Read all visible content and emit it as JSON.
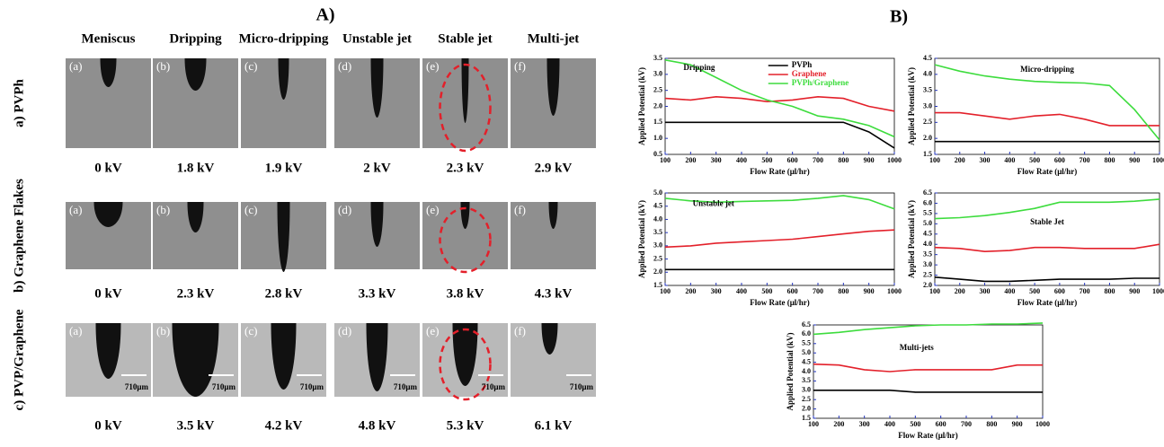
{
  "panel_a": {
    "title": "A)",
    "columns": [
      "Meniscus",
      "Dripping",
      "Micro-dripping",
      "Unstable jet",
      "Stable jet",
      "Multi-jet"
    ],
    "scale_bar_label": "710μm",
    "rows": [
      {
        "label": "a)  PVPh",
        "images": [
          {
            "letter": "(a)",
            "voltage": "0 kV"
          },
          {
            "letter": "(b)",
            "voltage": "1.8 kV"
          },
          {
            "letter": "(c)",
            "voltage": "1.9 kV"
          },
          {
            "letter": "(d)",
            "voltage": "2 kV"
          },
          {
            "letter": "(e)",
            "voltage": "2.3 kV"
          },
          {
            "letter": "(f)",
            "voltage": "2.9 kV"
          }
        ]
      },
      {
        "label": "b)  Graphene Flakes",
        "images": [
          {
            "letter": "(a)",
            "voltage": "0 kV"
          },
          {
            "letter": "(b)",
            "voltage": "2.3 kV"
          },
          {
            "letter": "(c)",
            "voltage": "2.8 kV"
          },
          {
            "letter": "(d)",
            "voltage": "3.3 kV"
          },
          {
            "letter": "(e)",
            "voltage": "3.8 kV"
          },
          {
            "letter": "(f)",
            "voltage": "4.3 kV"
          }
        ]
      },
      {
        "label": "c)  PVP/Graphene",
        "images": [
          {
            "letter": "(a)",
            "voltage": "0 kV"
          },
          {
            "letter": "(b)",
            "voltage": "3.5 kV"
          },
          {
            "letter": "(c)",
            "voltage": "4.2 kV"
          },
          {
            "letter": "(d)",
            "voltage": "4.8 kV"
          },
          {
            "letter": "(e)",
            "voltage": "5.3 kV"
          },
          {
            "letter": "(f)",
            "voltage": "6.1 kV"
          }
        ]
      }
    ]
  },
  "panel_b": {
    "title": "B)"
  },
  "chart_data": [
    {
      "type": "line",
      "title": "Dripping",
      "x_label": "Flow Rate (μl/hr)",
      "y_label": "Applied Potential (kV)",
      "legend": true,
      "x": [
        100,
        200,
        300,
        400,
        500,
        600,
        700,
        800,
        900,
        1000
      ],
      "xlim": [
        100,
        1000
      ],
      "xticks": [
        100,
        200,
        300,
        400,
        500,
        600,
        700,
        800,
        900,
        1000
      ],
      "ylim": [
        0.5,
        3.5
      ],
      "yticks": [
        0.5,
        {
          "value": 1,
          "label": "1.0"
        },
        1.5,
        {
          "value": 2,
          "label": "2.0"
        },
        2.5,
        {
          "value": 3,
          "label": "3.0"
        },
        3.5
      ],
      "series": [
        {
          "name": "PVPh",
          "color": "#000000",
          "values": [
            1.5,
            1.5,
            1.5,
            1.5,
            1.5,
            1.5,
            1.5,
            1.5,
            1.2,
            0.7
          ]
        },
        {
          "name": "Graphene",
          "color": "#e3202a",
          "values": [
            2.25,
            2.2,
            2.3,
            2.25,
            2.15,
            2.2,
            2.3,
            2.25,
            2.0,
            1.85
          ]
        },
        {
          "name": "PVPh/Graphene",
          "color": "#3ddc3d",
          "values": [
            3.45,
            3.3,
            2.9,
            2.5,
            2.2,
            2.0,
            1.7,
            1.6,
            1.4,
            1.05
          ]
        }
      ]
    },
    {
      "type": "line",
      "title": "Micro-dripping",
      "x_label": "Flow Rate (μl/hr)",
      "y_label": "Applied Potential (kV)",
      "x": [
        100,
        200,
        300,
        400,
        500,
        600,
        700,
        800,
        900,
        1000
      ],
      "xlim": [
        100,
        1000
      ],
      "xticks": [
        100,
        200,
        300,
        400,
        500,
        600,
        700,
        800,
        900,
        1000
      ],
      "ylim": [
        1.5,
        4.5
      ],
      "yticks": [
        1.5,
        {
          "value": 2,
          "label": "2.0"
        },
        2.5,
        {
          "value": 3,
          "label": "3.0"
        },
        3.5,
        {
          "value": 4,
          "label": "4.0"
        },
        4.5
      ],
      "series": [
        {
          "color": "#000000",
          "values": [
            1.9,
            1.9,
            1.9,
            1.9,
            1.9,
            1.9,
            1.9,
            1.9,
            1.9,
            1.9
          ]
        },
        {
          "color": "#e3202a",
          "values": [
            2.8,
            2.8,
            2.7,
            2.6,
            2.7,
            2.75,
            2.6,
            2.4,
            2.4,
            2.4
          ]
        },
        {
          "color": "#3ddc3d",
          "values": [
            4.3,
            4.1,
            3.95,
            3.85,
            3.78,
            3.75,
            3.73,
            3.65,
            2.9,
            1.95
          ]
        }
      ]
    },
    {
      "type": "line",
      "title": "Unstable jet",
      "x_label": "Flow Rate (μl/hr)",
      "y_label": "Applied Potential (kV)",
      "x": [
        100,
        200,
        300,
        400,
        500,
        600,
        700,
        800,
        900,
        1000
      ],
      "xlim": [
        100,
        1000
      ],
      "xticks": [
        100,
        200,
        300,
        400,
        500,
        600,
        700,
        800,
        900,
        1000
      ],
      "ylim": [
        1.5,
        5
      ],
      "yticks": [
        1.5,
        {
          "value": 2,
          "label": "2.0"
        },
        2.5,
        {
          "value": 3,
          "label": "3.0"
        },
        3.5,
        {
          "value": 4,
          "label": "4.0"
        },
        4.5,
        {
          "value": 5,
          "label": "5.0"
        }
      ],
      "series": [
        {
          "color": "#000000",
          "values": [
            2.1,
            2.1,
            2.1,
            2.1,
            2.1,
            2.1,
            2.1,
            2.1,
            2.1,
            2.1
          ]
        },
        {
          "color": "#e3202a",
          "values": [
            2.95,
            3.0,
            3.1,
            3.15,
            3.2,
            3.25,
            3.35,
            3.45,
            3.55,
            3.6
          ]
        },
        {
          "color": "#3ddc3d",
          "values": [
            4.8,
            4.7,
            4.65,
            4.68,
            4.7,
            4.72,
            4.8,
            4.9,
            4.75,
            4.4
          ]
        }
      ]
    },
    {
      "type": "line",
      "title": "Stable Jet",
      "x_label": "Flow Rate (μl/hr)",
      "y_label": "Applied Potential (kV)",
      "x": [
        100,
        200,
        300,
        400,
        500,
        600,
        700,
        800,
        900,
        1000
      ],
      "xlim": [
        100,
        1000
      ],
      "xticks": [
        100,
        200,
        300,
        400,
        500,
        600,
        700,
        800,
        900,
        1000
      ],
      "ylim": [
        2,
        6.5
      ],
      "yticks": [
        {
          "value": 2,
          "label": "2.0"
        },
        2.5,
        {
          "value": 3,
          "label": "3.0"
        },
        3.5,
        {
          "value": 4,
          "label": "4.0"
        },
        4.5,
        {
          "value": 5,
          "label": "5.0"
        },
        5.5,
        {
          "value": 6,
          "label": "6.0"
        },
        6.5
      ],
      "series": [
        {
          "color": "#000000",
          "values": [
            2.4,
            2.3,
            2.2,
            2.2,
            2.25,
            2.3,
            2.3,
            2.3,
            2.35,
            2.35
          ]
        },
        {
          "color": "#e3202a",
          "values": [
            3.85,
            3.8,
            3.65,
            3.7,
            3.85,
            3.85,
            3.8,
            3.8,
            3.8,
            4.0
          ]
        },
        {
          "color": "#3ddc3d",
          "values": [
            5.25,
            5.3,
            5.4,
            5.55,
            5.75,
            6.05,
            6.05,
            6.05,
            6.1,
            6.2
          ]
        }
      ]
    },
    {
      "type": "line",
      "title": "Multi-jets",
      "x_label": "Flow Rate (μl/hr)",
      "y_label": "Applied Potential (kV)",
      "x": [
        100,
        200,
        300,
        400,
        500,
        600,
        700,
        800,
        900,
        1000
      ],
      "xlim": [
        100,
        1000
      ],
      "xticks": [
        100,
        200,
        300,
        400,
        500,
        600,
        700,
        800,
        900,
        1000
      ],
      "ylim": [
        1.5,
        6.5
      ],
      "yticks": [
        1.5,
        {
          "value": 2,
          "label": "2.0"
        },
        2.5,
        {
          "value": 3,
          "label": "3.0"
        },
        3.5,
        {
          "value": 4,
          "label": "4.0"
        },
        4.5,
        {
          "value": 5,
          "label": "5.0"
        },
        5.5,
        {
          "value": 6,
          "label": "6.0"
        },
        6.5
      ],
      "series": [
        {
          "color": "#000000",
          "values": [
            3.0,
            3.0,
            3.0,
            3.0,
            2.9,
            2.9,
            2.9,
            2.9,
            2.9,
            2.9
          ]
        },
        {
          "color": "#e3202a",
          "values": [
            4.4,
            4.35,
            4.1,
            4.0,
            4.1,
            4.1,
            4.1,
            4.1,
            4.35,
            4.35
          ]
        },
        {
          "color": "#3ddc3d",
          "values": [
            6.0,
            6.1,
            6.25,
            6.35,
            6.45,
            6.5,
            6.5,
            6.55,
            6.55,
            6.6
          ]
        }
      ]
    }
  ]
}
